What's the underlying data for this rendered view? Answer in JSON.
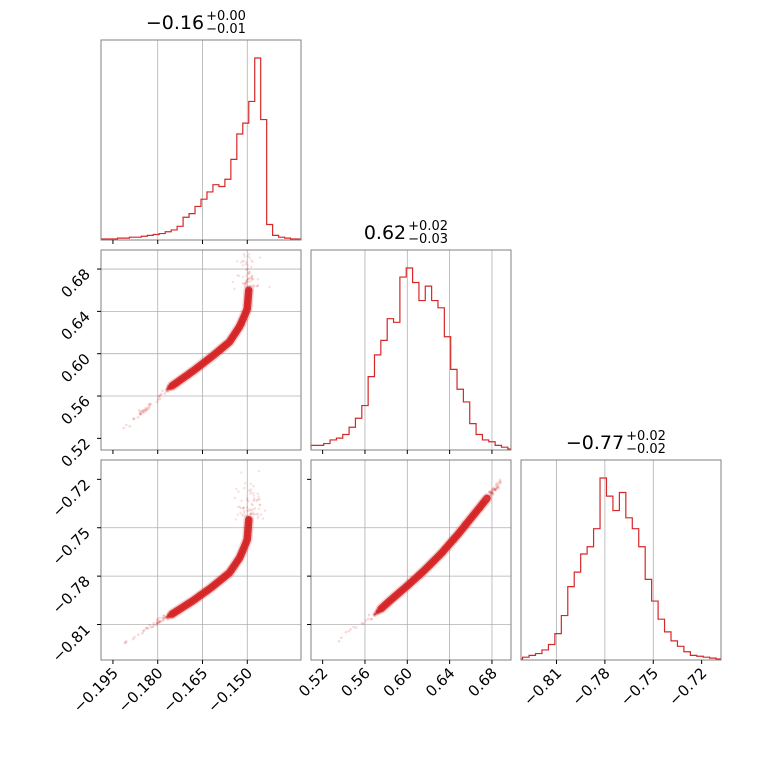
{
  "chart_data": {
    "type": "corner",
    "color": "#d62728",
    "parameters": [
      {
        "title_value": "−0.16",
        "title_upper": "+0.00",
        "title_lower": "−0.01",
        "range": [
          -0.199,
          -0.132
        ],
        "ticks": [
          -0.195,
          -0.18,
          -0.165,
          -0.15
        ],
        "tick_labels": [
          "−0.195",
          "−0.180",
          "−0.165",
          "−0.150"
        ],
        "grid": [
          -0.18,
          -0.165,
          -0.15
        ]
      },
      {
        "title_value": "0.62",
        "title_upper": "+0.02",
        "title_lower": "−0.03",
        "range": [
          0.509,
          0.698
        ],
        "ticks": [
          0.52,
          0.56,
          0.6,
          0.64,
          0.68
        ],
        "tick_labels": [
          "0.52",
          "0.56",
          "0.60",
          "0.64",
          "0.68"
        ],
        "grid": [
          0.56,
          0.6,
          0.64,
          0.68
        ]
      },
      {
        "title_value": "−0.77",
        "title_upper": "+0.02",
        "title_lower": "−0.02",
        "range": [
          -0.832,
          -0.708
        ],
        "ticks": [
          -0.81,
          -0.78,
          -0.75,
          -0.72
        ],
        "tick_labels": [
          "−0.81",
          "−0.78",
          "−0.75",
          "−0.72"
        ],
        "grid": [
          -0.81,
          -0.78,
          -0.75
        ]
      }
    ],
    "histograms": [
      {
        "param": 0,
        "bins": [
          [
            -0.1965,
            0
          ],
          [
            -0.1945,
            0
          ],
          [
            -0.1925,
            0.005
          ],
          [
            -0.1905,
            0.005
          ],
          [
            -0.1885,
            0.01
          ],
          [
            -0.1865,
            0.01
          ],
          [
            -0.1845,
            0.015
          ],
          [
            -0.1825,
            0.02
          ],
          [
            -0.1805,
            0.025
          ],
          [
            -0.1785,
            0.03
          ],
          [
            -0.1765,
            0.04
          ],
          [
            -0.1745,
            0.05
          ],
          [
            -0.1725,
            0.07
          ],
          [
            -0.1705,
            0.12
          ],
          [
            -0.1685,
            0.14
          ],
          [
            -0.1665,
            0.18
          ],
          [
            -0.1645,
            0.22
          ],
          [
            -0.1625,
            0.26
          ],
          [
            -0.1605,
            0.3
          ],
          [
            -0.1585,
            0.29
          ],
          [
            -0.1565,
            0.33
          ],
          [
            -0.1545,
            0.44
          ],
          [
            -0.1525,
            0.58
          ],
          [
            -0.1505,
            0.64
          ],
          [
            -0.1485,
            0.76
          ],
          [
            -0.1465,
            1.0
          ],
          [
            -0.1445,
            0.66
          ],
          [
            -0.1425,
            0.08
          ],
          [
            -0.1405,
            0.02
          ],
          [
            -0.1385,
            0.01
          ],
          [
            -0.1365,
            0.005
          ],
          [
            -0.1345,
            0
          ]
        ]
      },
      {
        "param": 1,
        "bins": [
          [
            0.512,
            0.02
          ],
          [
            0.518,
            0.02
          ],
          [
            0.524,
            0.03
          ],
          [
            0.53,
            0.05
          ],
          [
            0.536,
            0.06
          ],
          [
            0.542,
            0.08
          ],
          [
            0.548,
            0.12
          ],
          [
            0.554,
            0.17
          ],
          [
            0.56,
            0.24
          ],
          [
            0.566,
            0.4
          ],
          [
            0.572,
            0.52
          ],
          [
            0.578,
            0.6
          ],
          [
            0.584,
            0.72
          ],
          [
            0.59,
            0.7
          ],
          [
            0.596,
            0.95
          ],
          [
            0.602,
            1.0
          ],
          [
            0.608,
            0.92
          ],
          [
            0.614,
            0.82
          ],
          [
            0.62,
            0.9
          ],
          [
            0.626,
            0.82
          ],
          [
            0.632,
            0.78
          ],
          [
            0.638,
            0.62
          ],
          [
            0.644,
            0.44
          ],
          [
            0.65,
            0.33
          ],
          [
            0.656,
            0.26
          ],
          [
            0.662,
            0.14
          ],
          [
            0.668,
            0.08
          ],
          [
            0.674,
            0.05
          ],
          [
            0.68,
            0.04
          ],
          [
            0.686,
            0.02
          ],
          [
            0.692,
            0.01
          ]
        ]
      },
      {
        "param": 2,
        "bins": [
          [
            -0.829,
            0.01
          ],
          [
            -0.825,
            0.02
          ],
          [
            -0.821,
            0.03
          ],
          [
            -0.817,
            0.05
          ],
          [
            -0.813,
            0.08
          ],
          [
            -0.809,
            0.14
          ],
          [
            -0.805,
            0.24
          ],
          [
            -0.801,
            0.4
          ],
          [
            -0.797,
            0.48
          ],
          [
            -0.793,
            0.58
          ],
          [
            -0.789,
            0.62
          ],
          [
            -0.785,
            0.72
          ],
          [
            -0.781,
            1.0
          ],
          [
            -0.777,
            0.9
          ],
          [
            -0.773,
            0.82
          ],
          [
            -0.769,
            0.92
          ],
          [
            -0.765,
            0.78
          ],
          [
            -0.761,
            0.72
          ],
          [
            -0.757,
            0.62
          ],
          [
            -0.753,
            0.44
          ],
          [
            -0.749,
            0.32
          ],
          [
            -0.745,
            0.22
          ],
          [
            -0.741,
            0.15
          ],
          [
            -0.737,
            0.1
          ],
          [
            -0.733,
            0.07
          ],
          [
            -0.729,
            0.04
          ],
          [
            -0.725,
            0.02
          ],
          [
            -0.721,
            0.015
          ],
          [
            -0.717,
            0.01
          ],
          [
            -0.713,
            0.005
          ]
        ]
      }
    ],
    "scatter_2d": [
      {
        "x_param": 0,
        "y_param": 1,
        "relation": [
          [
            -0.1915,
            0.5295
          ],
          [
            -0.184,
            0.548
          ],
          [
            -0.176,
            0.568
          ],
          [
            -0.168,
            0.584
          ],
          [
            -0.162,
            0.597
          ],
          [
            -0.156,
            0.611
          ],
          [
            -0.1525,
            0.626
          ],
          [
            -0.15,
            0.642
          ],
          [
            -0.1495,
            0.66
          ]
        ]
      },
      {
        "x_param": 0,
        "y_param": 2,
        "relation": [
          [
            -0.1915,
            -0.8215
          ],
          [
            -0.184,
            -0.813
          ],
          [
            -0.176,
            -0.8045
          ],
          [
            -0.168,
            -0.795
          ],
          [
            -0.162,
            -0.787
          ],
          [
            -0.156,
            -0.778
          ],
          [
            -0.1525,
            -0.7685
          ],
          [
            -0.15,
            -0.7575
          ],
          [
            -0.1495,
            -0.745
          ]
        ]
      },
      {
        "x_param": 1,
        "y_param": 2,
        "relation": [
          [
            0.5295,
            -0.8215
          ],
          [
            0.548,
            -0.813
          ],
          [
            0.568,
            -0.8045
          ],
          [
            0.584,
            -0.795
          ],
          [
            0.6,
            -0.786
          ],
          [
            0.616,
            -0.7765
          ],
          [
            0.632,
            -0.766
          ],
          [
            0.648,
            -0.754
          ],
          [
            0.664,
            -0.741
          ],
          [
            0.68,
            -0.728
          ],
          [
            0.688,
            -0.721
          ]
        ]
      }
    ],
    "grid": true
  }
}
